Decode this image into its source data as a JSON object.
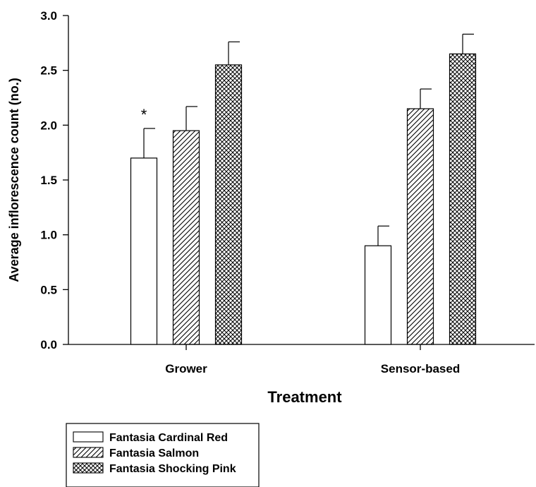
{
  "chart_data": {
    "type": "bar",
    "xlabel": "Treatment",
    "ylabel": "Average inflorescence count (no.)",
    "ylim": [
      0,
      3.0
    ],
    "yticks": [
      "0.0",
      "0.5",
      "1.0",
      "1.5",
      "2.0",
      "2.5",
      "3.0"
    ],
    "categories": [
      "Grower",
      "Sensor-based"
    ],
    "series": [
      {
        "name": "Fantasia Cardinal Red",
        "pattern": "none",
        "values": [
          1.7,
          0.9
        ],
        "errors": [
          0.27,
          0.18
        ]
      },
      {
        "name": "Fantasia Salmon",
        "pattern": "diagonal-hatch",
        "values": [
          1.95,
          2.15
        ],
        "errors": [
          0.22,
          0.18
        ]
      },
      {
        "name": "Fantasia Shocking Pink",
        "pattern": "crosshatch",
        "values": [
          2.55,
          2.65
        ],
        "errors": [
          0.21,
          0.18
        ]
      }
    ],
    "annotations": [
      {
        "text": "*",
        "category": "Grower",
        "series": "Fantasia Cardinal Red"
      }
    ],
    "grid": false,
    "legend_position": "bottom-left"
  }
}
